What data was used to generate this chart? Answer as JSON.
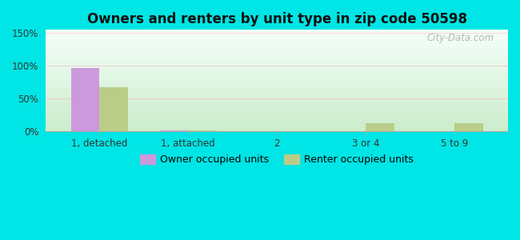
{
  "title": "Owners and renters by unit type in zip code 50598",
  "categories": [
    "1, detached",
    "1, attached",
    "2",
    "3 or 4",
    "5 to 9"
  ],
  "owner_values": [
    97,
    1.5,
    0,
    0,
    0
  ],
  "renter_values": [
    68,
    2,
    0.5,
    13,
    13
  ],
  "owner_color": "#cc99dd",
  "renter_color": "#bbcc88",
  "outer_bg": "#00e5e5",
  "plot_bg_top": "#f5fffa",
  "plot_bg_bottom": "#cceecc",
  "grid_color": "#ffaabb",
  "yticks": [
    0,
    50,
    100,
    150
  ],
  "ytick_labels": [
    "0%",
    "50%",
    "100%",
    "150%"
  ],
  "ylim": [
    0,
    155
  ],
  "bar_width": 0.32,
  "watermark": "City-Data.com",
  "title_fontsize": 12,
  "legend_fontsize": 9,
  "tick_fontsize": 8.5,
  "legend_owner": "Owner occupied units",
  "legend_renter": "Renter occupied units"
}
